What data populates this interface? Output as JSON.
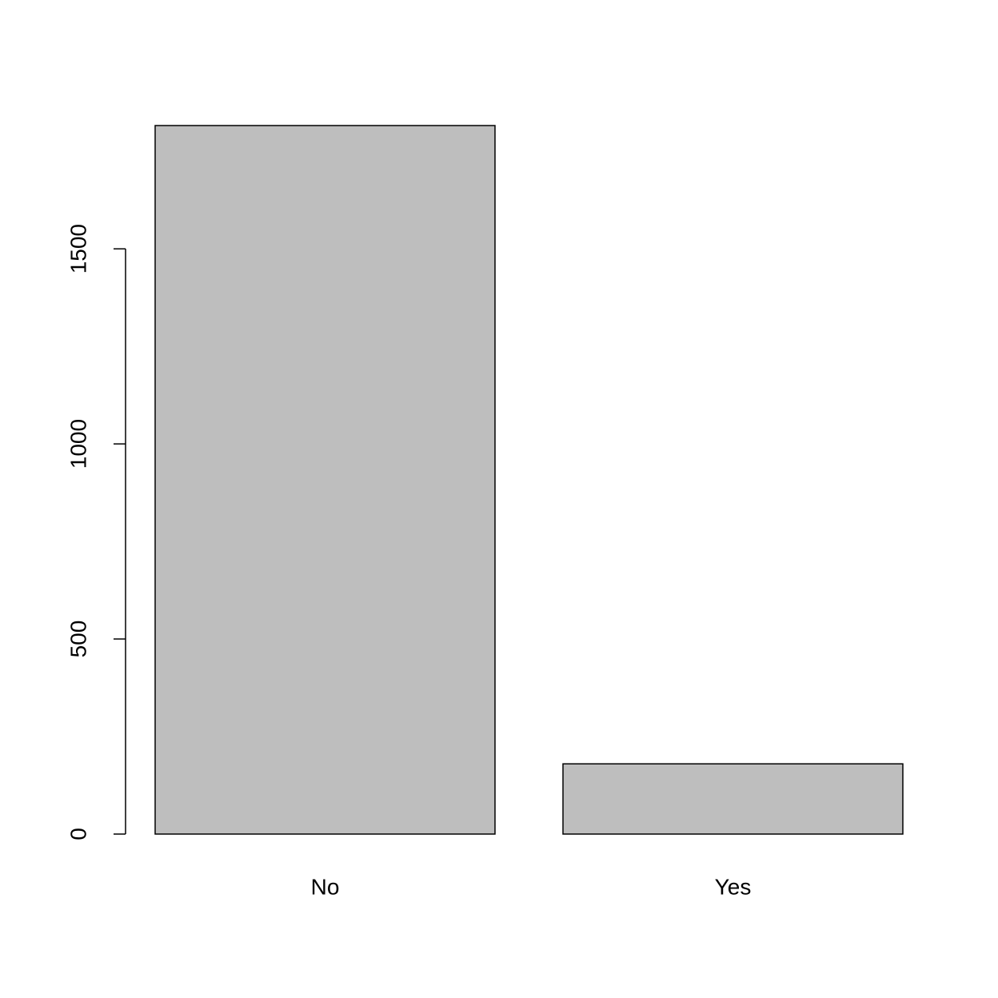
{
  "chart_data": {
    "type": "bar",
    "categories": [
      "No",
      "Yes"
    ],
    "values": [
      1816,
      180
    ],
    "color": "#bebebe",
    "ylim": [
      0,
      1816
    ],
    "yticks": [
      0,
      500,
      1000,
      1500
    ]
  }
}
